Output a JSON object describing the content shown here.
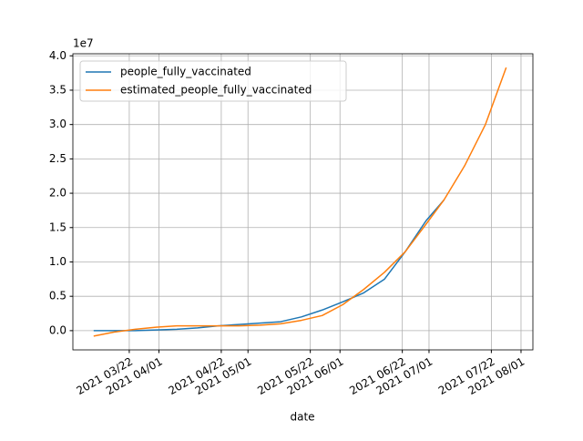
{
  "chart_data": {
    "type": "line",
    "x_label": "date",
    "y_offset_label": "1e7",
    "x": [
      "2021-03-10",
      "2021-03-17",
      "2021-03-24",
      "2021-03-31",
      "2021-04-07",
      "2021-04-14",
      "2021-04-21",
      "2021-04-28",
      "2021-05-05",
      "2021-05-12",
      "2021-05-19",
      "2021-05-26",
      "2021-06-02",
      "2021-06-09",
      "2021-06-16",
      "2021-06-23",
      "2021-06-30",
      "2021-07-06",
      "2021-07-13",
      "2021-07-20",
      "2021-07-27"
    ],
    "series": [
      {
        "name": "people_fully_vaccinated",
        "color": "#1f77b4",
        "values": [
          0.0,
          0.0,
          0.0,
          0.01,
          0.02,
          0.04,
          0.07,
          0.09,
          0.11,
          0.13,
          0.2,
          0.3,
          0.42,
          0.55,
          0.75,
          1.15,
          1.6,
          1.9,
          null,
          null,
          null
        ]
      },
      {
        "name": "estimated_people_fully_vaccinated",
        "color": "#ff7f0e",
        "values": [
          -0.08,
          -0.02,
          0.02,
          0.05,
          0.07,
          0.07,
          0.07,
          0.07,
          0.08,
          0.1,
          0.15,
          0.22,
          0.38,
          0.6,
          0.85,
          1.15,
          1.55,
          1.9,
          2.4,
          3.0,
          3.83
        ]
      }
    ],
    "xlim": [
      "2021-03-03",
      "2021-08-05"
    ],
    "xticks": [
      {
        "value": "2021-03-22",
        "label": "2021 03/22"
      },
      {
        "value": "2021-04-01",
        "label": "2021 04/01"
      },
      {
        "value": "2021-04-22",
        "label": "2021 04/22"
      },
      {
        "value": "2021-05-01",
        "label": "2021 05/01"
      },
      {
        "value": "2021-05-22",
        "label": "2021 05/22"
      },
      {
        "value": "2021-06-01",
        "label": "2021 06/01"
      },
      {
        "value": "2021-06-22",
        "label": "2021 06/22"
      },
      {
        "value": "2021-07-01",
        "label": "2021 07/01"
      },
      {
        "value": "2021-07-22",
        "label": "2021 07/22"
      },
      {
        "value": "2021-08-01",
        "label": "2021 08/01"
      }
    ],
    "ylim": [
      -0.28,
      4.03
    ],
    "yticks": [
      {
        "value": 0,
        "label": "0.0"
      },
      0.5,
      {
        "value": 1,
        "label": "1.0"
      },
      1.5,
      {
        "value": 2,
        "label": "2.0"
      },
      2.5,
      {
        "value": 3,
        "label": "3.0"
      },
      3.5,
      {
        "value": 4,
        "label": "4.0"
      }
    ],
    "grid": true,
    "legend": "upper left"
  }
}
